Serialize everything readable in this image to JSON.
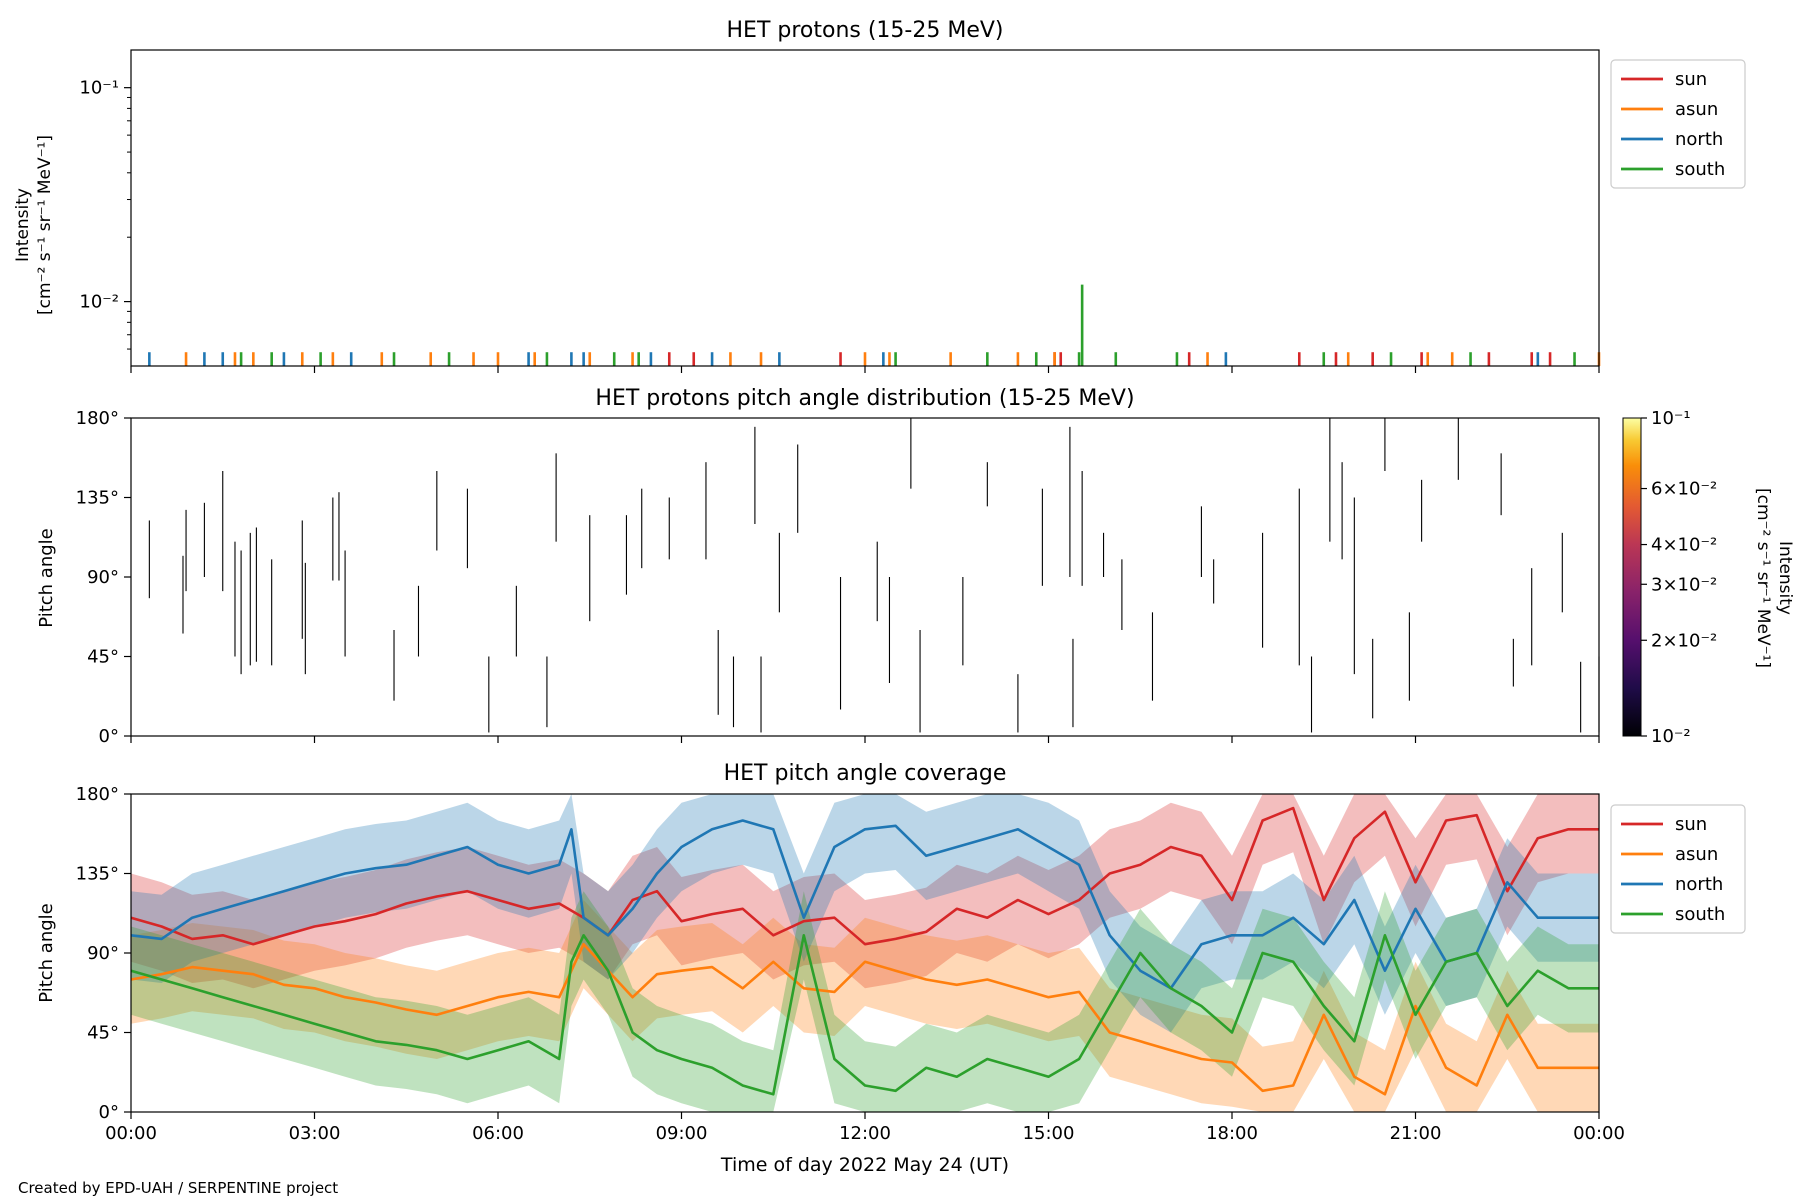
{
  "footer": "Created by EPD-UAH / SERPENTINE project",
  "colors": {
    "sun": "#d62728",
    "asun": "#ff7f0e",
    "north": "#1f77b4",
    "south": "#2ca02c"
  },
  "chart_data": [
    {
      "type": "line",
      "title": "HET protons (15-25 MeV)",
      "ylabel_line1": "Intensity",
      "ylabel_line2": "[cm⁻² s⁻¹ sr⁻¹ MeV⁻¹]",
      "yscale": "log",
      "ylim": [
        0.005,
        0.15
      ],
      "xlim": [
        0,
        24
      ],
      "ytick_labels": [
        "10⁻¹",
        "10⁻²"
      ],
      "ytick_values": [
        0.1,
        0.01
      ],
      "legend": {
        "position": "outside-right",
        "entries": [
          "sun",
          "asun",
          "north",
          "south"
        ]
      },
      "series": [
        {
          "name": "sun",
          "value": 0.0058,
          "x": [
            8.8,
            9.2,
            11.6,
            15.1,
            15.2,
            17.3,
            19.1,
            19.7,
            20.3,
            21.1,
            22.2,
            22.9,
            23.2
          ]
        },
        {
          "name": "asun",
          "value": 0.0058,
          "x": [
            0.9,
            1.7,
            2.0,
            2.8,
            3.3,
            4.1,
            4.9,
            5.6,
            6.0,
            6.6,
            7.5,
            8.2,
            9.8,
            10.3,
            12.0,
            12.4,
            13.4,
            14.5,
            15.1,
            17.6,
            19.9,
            21.2,
            21.6,
            24.0
          ]
        },
        {
          "name": "north",
          "value": 0.0058,
          "x": [
            0.3,
            1.2,
            1.5,
            2.5,
            3.6,
            6.5,
            7.2,
            7.4,
            8.5,
            9.5,
            10.6,
            12.3,
            17.9,
            23.0
          ]
        },
        {
          "name": "south",
          "value": 0.0058,
          "x": [
            1.8,
            2.3,
            3.1,
            4.3,
            5.2,
            6.8,
            7.9,
            8.3,
            12.5,
            14.0,
            14.8,
            15.5,
            16.1,
            17.1,
            19.5,
            20.6,
            21.9,
            23.6
          ]
        },
        {
          "name": "south",
          "value": 0.012,
          "x": [
            15.55
          ]
        }
      ]
    },
    {
      "type": "heatmap",
      "title": "HET protons pitch angle distribution (15-25 MeV)",
      "ylabel": "Pitch angle",
      "ylim": [
        0,
        180
      ],
      "xlim": [
        0,
        24
      ],
      "ytick_labels": [
        "0°",
        "45°",
        "90°",
        "135°",
        "180°"
      ],
      "ytick_values": [
        0,
        45,
        90,
        135,
        180
      ],
      "colorbar": {
        "label": "Intensity",
        "units": "[cm⁻² s⁻¹ sr⁻¹ MeV⁻¹]",
        "scale": "log",
        "range": [
          0.01,
          0.1
        ],
        "tick_labels": [
          "10⁻¹",
          "6×10⁻²",
          "4×10⁻²",
          "3×10⁻²",
          "2×10⁻²",
          "10⁻²"
        ],
        "tick_values": [
          0.1,
          0.06,
          0.04,
          0.03,
          0.02,
          0.01
        ]
      },
      "segments": [
        [
          0.3,
          78,
          122
        ],
        [
          0.85,
          58,
          102
        ],
        [
          0.9,
          82,
          128
        ],
        [
          1.2,
          90,
          132
        ],
        [
          1.5,
          82,
          150
        ],
        [
          1.7,
          45,
          110
        ],
        [
          1.8,
          35,
          105
        ],
        [
          1.95,
          40,
          115
        ],
        [
          2.05,
          42,
          118
        ],
        [
          2.3,
          40,
          100
        ],
        [
          2.8,
          55,
          122
        ],
        [
          2.85,
          35,
          98
        ],
        [
          3.3,
          88,
          135
        ],
        [
          3.4,
          88,
          138
        ],
        [
          3.5,
          45,
          105
        ],
        [
          4.3,
          20,
          60
        ],
        [
          4.7,
          45,
          85
        ],
        [
          5.0,
          105,
          150
        ],
        [
          5.5,
          95,
          140
        ],
        [
          5.85,
          2,
          45
        ],
        [
          6.3,
          45,
          85
        ],
        [
          6.8,
          5,
          45
        ],
        [
          6.95,
          110,
          160
        ],
        [
          7.5,
          65,
          125
        ],
        [
          8.1,
          80,
          125
        ],
        [
          8.35,
          95,
          140
        ],
        [
          8.8,
          100,
          135
        ],
        [
          9.4,
          100,
          155
        ],
        [
          9.6,
          12,
          60
        ],
        [
          9.85,
          5,
          45
        ],
        [
          10.2,
          120,
          175
        ],
        [
          10.3,
          2,
          45
        ],
        [
          10.6,
          70,
          115
        ],
        [
          10.9,
          115,
          165
        ],
        [
          11.6,
          15,
          90
        ],
        [
          12.2,
          65,
          110
        ],
        [
          12.4,
          30,
          90
        ],
        [
          12.75,
          140,
          180
        ],
        [
          12.9,
          2,
          60
        ],
        [
          13.6,
          40,
          90
        ],
        [
          14.0,
          130,
          155
        ],
        [
          14.5,
          2,
          35
        ],
        [
          14.9,
          85,
          140
        ],
        [
          15.35,
          90,
          175
        ],
        [
          15.4,
          5,
          55
        ],
        [
          15.55,
          85,
          150
        ],
        [
          15.9,
          90,
          115
        ],
        [
          16.2,
          60,
          100
        ],
        [
          16.7,
          20,
          70
        ],
        [
          17.5,
          90,
          130
        ],
        [
          17.7,
          75,
          100
        ],
        [
          18.5,
          50,
          115
        ],
        [
          19.1,
          40,
          140
        ],
        [
          19.3,
          2,
          45
        ],
        [
          19.6,
          110,
          180
        ],
        [
          19.8,
          100,
          155
        ],
        [
          20.0,
          35,
          135
        ],
        [
          20.3,
          10,
          55
        ],
        [
          20.5,
          150,
          180
        ],
        [
          20.9,
          20,
          70
        ],
        [
          21.1,
          110,
          145
        ],
        [
          21.7,
          145,
          180
        ],
        [
          22.4,
          125,
          160
        ],
        [
          22.6,
          28,
          55
        ],
        [
          22.9,
          40,
          95
        ],
        [
          23.4,
          70,
          115
        ],
        [
          23.7,
          2,
          42
        ],
        [
          24.0,
          2,
          45
        ]
      ]
    },
    {
      "type": "area",
      "title": "HET pitch angle coverage",
      "ylabel": "Pitch angle",
      "xlabel": "Time of day 2022 May 24 (UT)",
      "ylim": [
        0,
        180
      ],
      "xlim": [
        0,
        24
      ],
      "ytick_labels": [
        "0°",
        "45°",
        "90°",
        "135°",
        "180°"
      ],
      "ytick_values": [
        0,
        45,
        90,
        135,
        180
      ],
      "xtick_labels": [
        "00:00",
        "03:00",
        "06:00",
        "09:00",
        "12:00",
        "15:00",
        "18:00",
        "21:00",
        "00:00"
      ],
      "xtick_values": [
        0,
        3,
        6,
        9,
        12,
        15,
        18,
        21,
        24
      ],
      "legend": {
        "position": "outside-right",
        "entries": [
          "sun",
          "asun",
          "north",
          "south"
        ]
      },
      "band_halfwidth_deg": 25,
      "series": [
        {
          "name": "sun",
          "x": [
            0,
            0.5,
            1,
            1.5,
            2,
            2.5,
            3,
            3.5,
            4,
            4.5,
            5,
            5.5,
            6,
            6.5,
            7,
            7.4,
            7.8,
            8.2,
            8.6,
            9,
            9.5,
            10,
            10.5,
            11,
            11.5,
            12,
            12.5,
            13,
            13.5,
            14,
            14.5,
            15,
            15.5,
            16,
            16.5,
            17,
            17.5,
            18,
            18.5,
            19,
            19.5,
            20,
            20.5,
            21,
            21.5,
            22,
            22.5,
            23,
            23.5,
            24
          ],
          "y": [
            110,
            105,
            98,
            100,
            95,
            100,
            105,
            108,
            112,
            118,
            122,
            125,
            120,
            115,
            118,
            110,
            100,
            120,
            125,
            108,
            112,
            115,
            100,
            108,
            110,
            95,
            98,
            102,
            115,
            110,
            120,
            112,
            120,
            135,
            140,
            150,
            145,
            120,
            165,
            172,
            120,
            155,
            170,
            130,
            165,
            168,
            125,
            155,
            160,
            160
          ]
        },
        {
          "name": "asun",
          "x": [
            0,
            0.5,
            1,
            1.5,
            2,
            2.5,
            3,
            3.5,
            4,
            4.5,
            5,
            5.5,
            6,
            6.5,
            7,
            7.4,
            7.8,
            8.2,
            8.6,
            9,
            9.5,
            10,
            10.5,
            11,
            11.5,
            12,
            12.5,
            13,
            13.5,
            14,
            14.5,
            15,
            15.5,
            16,
            16.5,
            17,
            17.5,
            18,
            18.5,
            19,
            19.5,
            20,
            20.5,
            21,
            21.5,
            22,
            22.5,
            23,
            23.5,
            24
          ],
          "y": [
            75,
            78,
            82,
            80,
            78,
            72,
            70,
            65,
            62,
            58,
            55,
            60,
            65,
            68,
            65,
            95,
            80,
            65,
            78,
            80,
            82,
            70,
            85,
            70,
            68,
            85,
            80,
            75,
            72,
            75,
            70,
            65,
            68,
            45,
            40,
            35,
            30,
            28,
            12,
            15,
            55,
            20,
            10,
            60,
            25,
            15,
            55,
            25,
            25,
            25
          ]
        },
        {
          "name": "north",
          "x": [
            0,
            0.5,
            1,
            1.5,
            2,
            2.5,
            3,
            3.5,
            4,
            4.5,
            5,
            5.5,
            6,
            6.5,
            7,
            7.2,
            7.4,
            7.8,
            8.2,
            8.6,
            9,
            9.5,
            10,
            10.5,
            11,
            11.5,
            12,
            12.5,
            13,
            13.5,
            14,
            14.5,
            15,
            15.5,
            16,
            16.5,
            17,
            17.5,
            18,
            18.5,
            19,
            19.5,
            20,
            20.5,
            21,
            21.5,
            22,
            22.5,
            23,
            23.5,
            24
          ],
          "y": [
            100,
            98,
            110,
            115,
            120,
            125,
            130,
            135,
            138,
            140,
            145,
            150,
            140,
            135,
            140,
            160,
            110,
            100,
            115,
            135,
            150,
            160,
            165,
            160,
            110,
            150,
            160,
            162,
            145,
            150,
            155,
            160,
            150,
            140,
            100,
            80,
            70,
            95,
            100,
            100,
            110,
            95,
            120,
            80,
            115,
            85,
            90,
            130,
            110,
            110,
            110
          ]
        },
        {
          "name": "south",
          "x": [
            0,
            0.5,
            1,
            1.5,
            2,
            2.5,
            3,
            3.5,
            4,
            4.5,
            5,
            5.5,
            6,
            6.5,
            7,
            7.2,
            7.4,
            7.8,
            8.2,
            8.6,
            9,
            9.5,
            10,
            10.5,
            11,
            11.5,
            12,
            12.5,
            13,
            13.5,
            14,
            14.5,
            15,
            15.5,
            16,
            16.5,
            17,
            17.5,
            18,
            18.5,
            19,
            19.5,
            20,
            20.5,
            21,
            21.5,
            22,
            22.5,
            23,
            23.5,
            24
          ],
          "y": [
            80,
            75,
            70,
            65,
            60,
            55,
            50,
            45,
            40,
            38,
            35,
            30,
            35,
            40,
            30,
            85,
            100,
            80,
            45,
            35,
            30,
            25,
            15,
            10,
            100,
            30,
            15,
            12,
            25,
            20,
            30,
            25,
            20,
            30,
            60,
            90,
            70,
            60,
            45,
            90,
            85,
            60,
            40,
            100,
            55,
            85,
            90,
            60,
            80,
            70,
            70
          ]
        }
      ]
    }
  ]
}
